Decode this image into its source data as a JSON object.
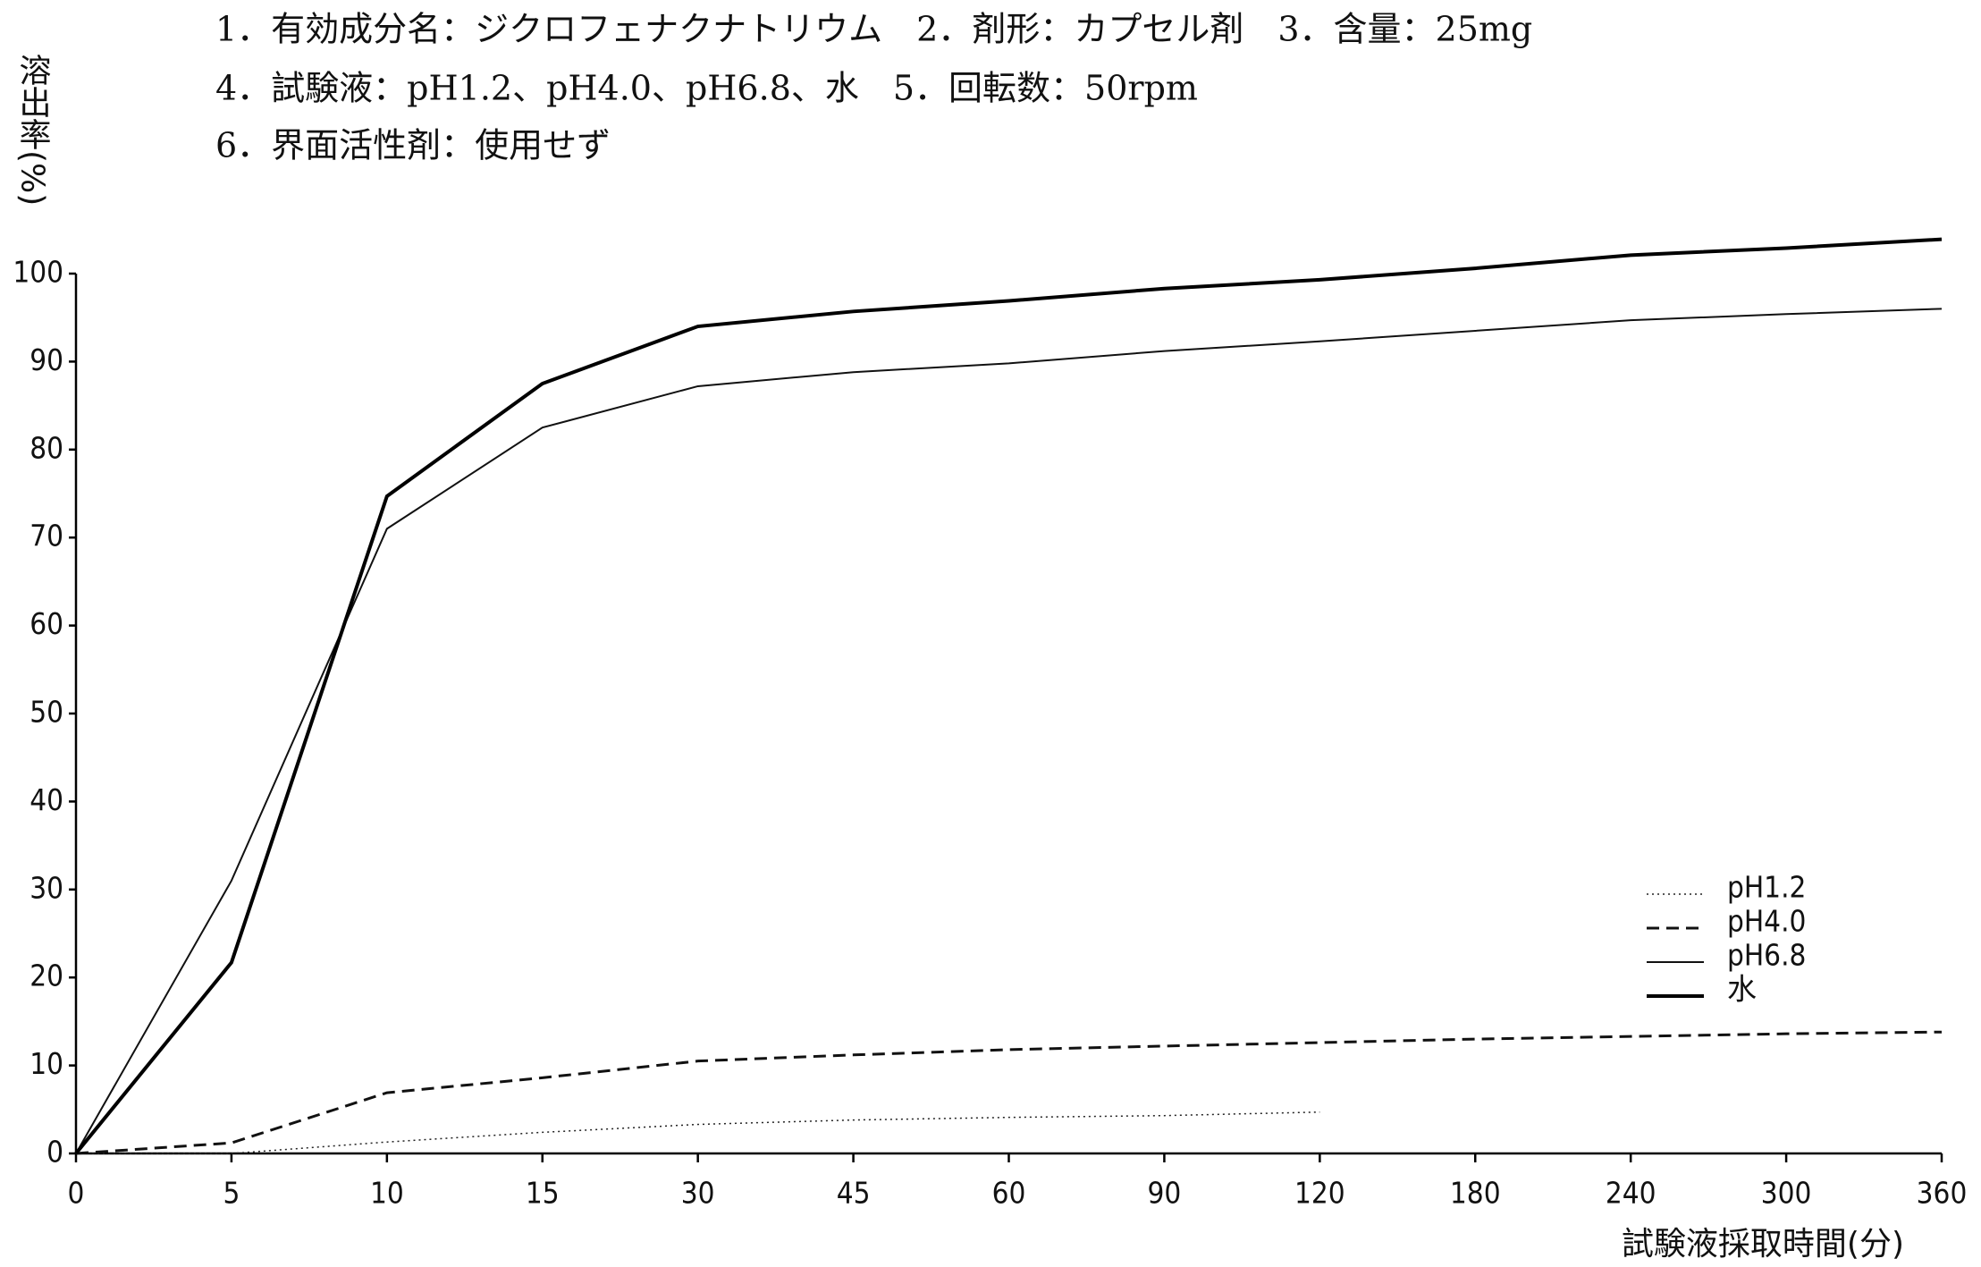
{
  "chart_data": {
    "type": "line",
    "header": [
      "1．有効成分名：ジクロフェナクナトリウム　2．剤形：カプセル剤　3．含量：25mg",
      "4．試験液：pH1.2、pH4.0、pH6.8、水　5．回転数：50rpm",
      "6．界面活性剤：使用せず"
    ],
    "y_label": "溶出率(%)",
    "x_label": "試験液採取時間(分)",
    "categories": [
      "0",
      "5",
      "10",
      "15",
      "30",
      "45",
      "60",
      "90",
      "120",
      "180",
      "240",
      "300",
      "360"
    ],
    "ylim": [
      0,
      100
    ],
    "yticks": [
      0,
      10,
      20,
      30,
      40,
      50,
      60,
      70,
      80,
      90,
      100
    ],
    "grid": false,
    "legend": "lower-right",
    "series": [
      {
        "name": "pH1.2",
        "color": "#222222",
        "dash": "dotted",
        "width": 1.5,
        "values": [
          0,
          0,
          1.3,
          2.4,
          3.3,
          3.8,
          4.1,
          4.3,
          4.7,
          null,
          null,
          null,
          null
        ]
      },
      {
        "name": "pH4.0",
        "color": "#111111",
        "dash": "dashed",
        "width": 3,
        "values": [
          0,
          1.2,
          6.9,
          8.6,
          10.5,
          11.2,
          11.8,
          12.2,
          12.6,
          13.0,
          13.3,
          13.6,
          13.8
        ]
      },
      {
        "name": "pH6.8",
        "color": "#111111",
        "dash": "solid",
        "width": 2,
        "values": [
          0,
          31,
          71,
          82.5,
          87.2,
          88.8,
          89.8,
          91.2,
          92.3,
          93.5,
          94.7,
          95.4,
          96
        ]
      },
      {
        "name": "水",
        "color": "#000000",
        "dash": "solid",
        "width": 4,
        "values": [
          0,
          21.7,
          74.7,
          87.5,
          94,
          95.7,
          96.9,
          98.3,
          99.3,
          100.6,
          102.1,
          102.9,
          103.9
        ]
      }
    ]
  }
}
